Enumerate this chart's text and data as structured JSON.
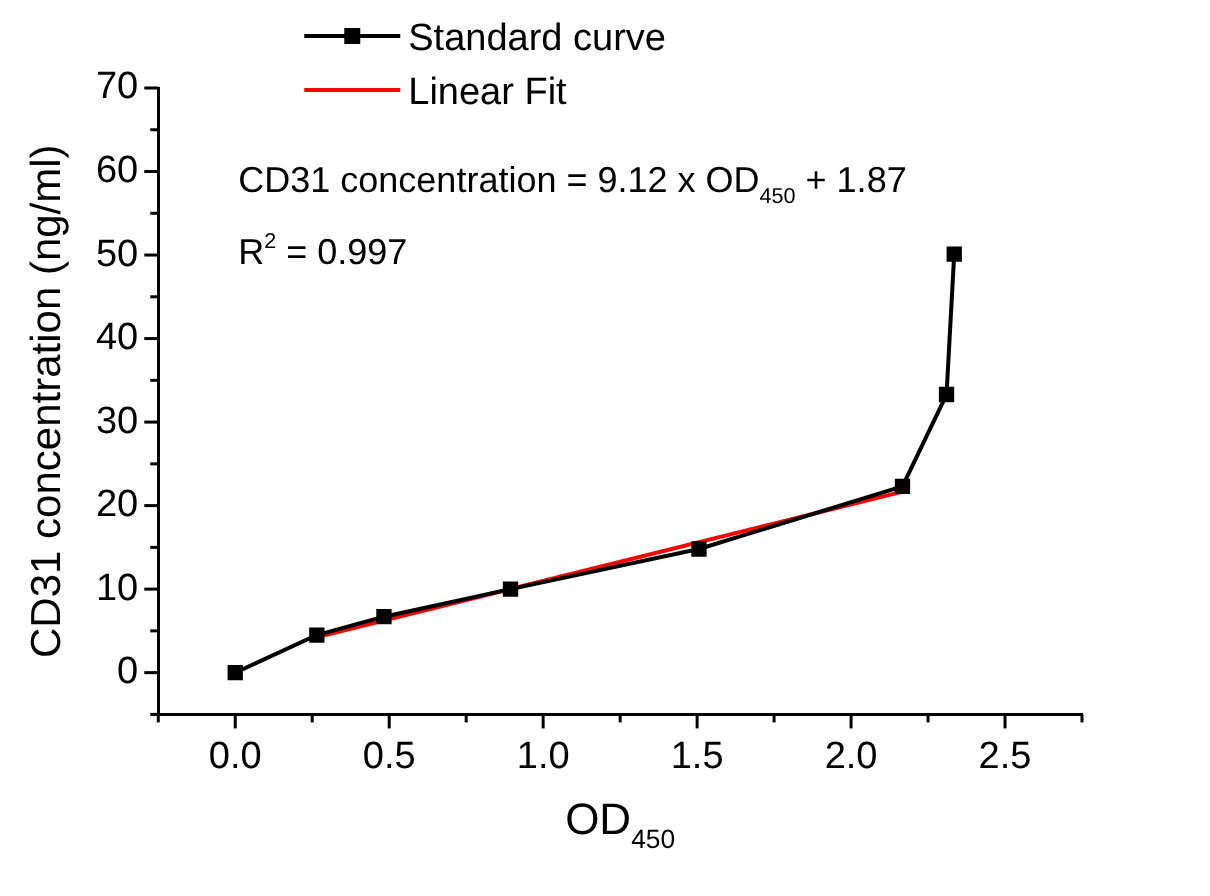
{
  "chart_data": {
    "type": "line",
    "xlabel": "OD$_{450}$",
    "ylabel": "CD31 concentration (ng/ml)",
    "xlim": [
      -0.25,
      2.75
    ],
    "ylim": [
      -5,
      70
    ],
    "xticks": [
      {
        "value": -0.25,
        "label": null
      },
      {
        "value": 0,
        "label": "0.0"
      },
      {
        "value": 0.25,
        "label": null
      },
      0.5,
      {
        "value": 0.75,
        "label": null
      },
      {
        "value": 1,
        "label": "1.0"
      },
      {
        "value": 1.25,
        "label": null
      },
      1.5,
      {
        "value": 1.75,
        "label": null
      },
      {
        "value": 2,
        "label": "2.0"
      },
      {
        "value": 2.25,
        "label": null
      },
      2.5,
      {
        "value": 2.75,
        "label": null
      }
    ],
    "yticks": [
      {
        "value": -5,
        "label": null
      },
      0,
      {
        "value": 5,
        "label": null
      },
      10,
      {
        "value": 15,
        "label": null
      },
      20,
      {
        "value": 25,
        "label": null
      },
      30,
      {
        "value": 35,
        "label": null
      },
      40,
      {
        "value": 45,
        "label": null
      },
      50,
      {
        "value": 55,
        "label": null
      },
      60,
      {
        "value": 65,
        "label": null
      },
      70
    ],
    "grid": false,
    "legend": "top",
    "series": [
      {
        "name": "Standard curve",
        "type": "line",
        "color": "#000000",
        "marker": "square",
        "line_style": "solid",
        "x": [
          0.0,
          0.265,
          0.483,
          0.894,
          1.506,
          2.167,
          2.31,
          2.335
        ],
        "values": [
          0,
          4.5,
          6.7,
          10.0,
          14.8,
          22.3,
          33.3,
          50.1
        ]
      },
      {
        "name": "Linear Fit",
        "type": "line",
        "color": "#ff0000",
        "marker": "none",
        "line_style": "solid",
        "x": [
          0.27,
          2.17
        ],
        "values": [
          4.3,
          21.7
        ]
      }
    ],
    "annotations": [
      "CD31 concentration = 9.12 x OD$_{450}$ + 1.87",
      "R$^{2}$ = 0.997"
    ]
  }
}
